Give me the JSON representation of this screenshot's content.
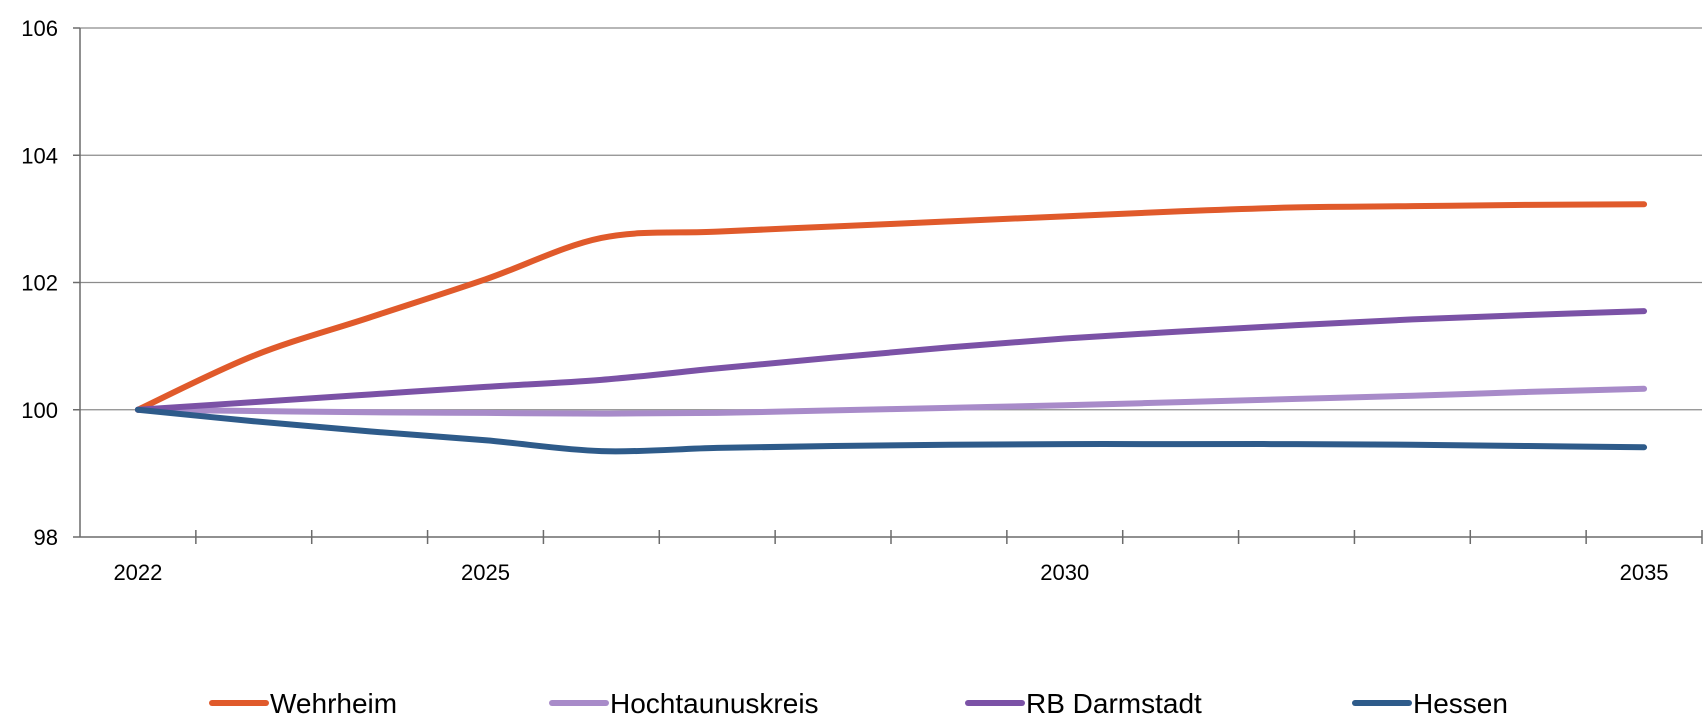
{
  "chart_data": {
    "type": "line",
    "title": "",
    "xlabel": "",
    "ylabel": "",
    "ylim": [
      98,
      106
    ],
    "y_ticks": [
      98,
      100,
      102,
      104,
      106
    ],
    "xlim": [
      2022,
      2035
    ],
    "x": [
      2022,
      2023,
      2024,
      2025,
      2026,
      2027,
      2028,
      2029,
      2030,
      2031,
      2032,
      2033,
      2034,
      2035
    ],
    "x_tick_labels": [
      {
        "label": "2022",
        "x": 2022
      },
      {
        "label": "2025",
        "x": 2025
      },
      {
        "label": "2030",
        "x": 2030
      },
      {
        "label": "2035",
        "x": 2035
      }
    ],
    "grid": "horizontal",
    "legend_position": "bottom",
    "series": [
      {
        "name": "Wehrheim",
        "color": "#e05a2b",
        "values": [
          100.0,
          100.85,
          101.45,
          102.05,
          102.7,
          102.8,
          102.88,
          102.96,
          103.04,
          103.12,
          103.18,
          103.2,
          103.22,
          103.23
        ]
      },
      {
        "name": "Hochtaunuskreis",
        "color": "#a88bc9",
        "values": [
          100.0,
          99.98,
          99.96,
          99.95,
          99.94,
          99.95,
          99.99,
          100.03,
          100.07,
          100.12,
          100.17,
          100.22,
          100.28,
          100.33
        ]
      },
      {
        "name": "RB Darmstadt",
        "color": "#7b52a6",
        "values": [
          100.0,
          100.12,
          100.24,
          100.36,
          100.47,
          100.65,
          100.82,
          100.98,
          101.12,
          101.23,
          101.33,
          101.42,
          101.49,
          101.55
        ]
      },
      {
        "name": "Hessen",
        "color": "#2e5b8a",
        "values": [
          100.0,
          99.82,
          99.66,
          99.52,
          99.35,
          99.4,
          99.43,
          99.45,
          99.46,
          99.46,
          99.46,
          99.45,
          99.43,
          99.41
        ]
      }
    ]
  }
}
